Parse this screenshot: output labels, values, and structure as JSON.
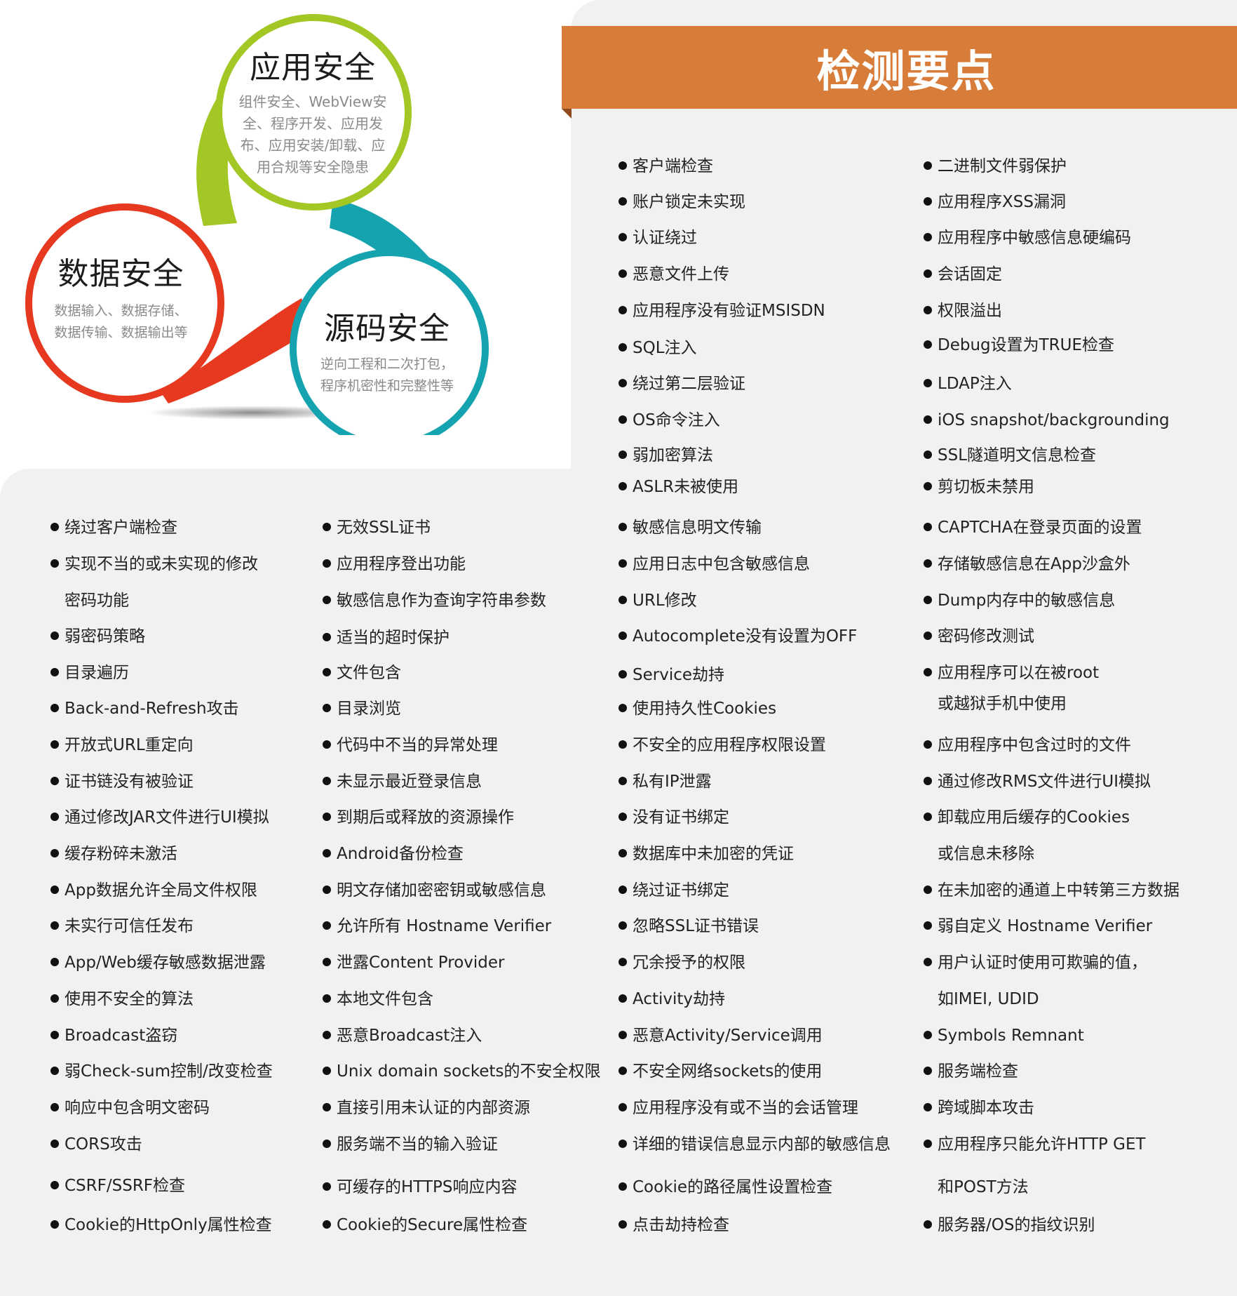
{
  "header": {
    "title": "检测要点"
  },
  "circles": {
    "app": {
      "title": "应用安全",
      "desc_lines": [
        "组件安全、WebView安",
        "全、程序开发、应用发",
        "布、应用安装/卸载、应",
        "用合规等安全隐患"
      ],
      "color": "#a3c725"
    },
    "data": {
      "title": "数据安全",
      "desc_lines": [
        "数据输入、数据存储、",
        "数据传输、数据输出等"
      ],
      "color": "#e6391f"
    },
    "source": {
      "title": "源码安全",
      "desc_lines": [
        "逆向工程和二次打包，",
        "程序机密性和完整性等"
      ],
      "color": "#16a3b0"
    }
  },
  "top_checks": {
    "col_a": [
      "客户端检查",
      "账户锁定未实现",
      "认证绕过",
      "恶意文件上传",
      "应用程序没有验证MSISDN",
      "SQL注入",
      "绕过第二层验证",
      "OS命令注入",
      "弱加密算法",
      "ASLR未被使用"
    ],
    "col_b": [
      "二进制文件弱保护",
      "应用程序XSS漏洞",
      "应用程序中敏感信息硬编码",
      "会话固定",
      "权限溢出",
      "Debug设置为TRUE检查",
      "LDAP注入",
      "iOS snapshot/backgrounding",
      "SSL隧道明文信息检查",
      "剪切板未禁用"
    ]
  },
  "bottom_checks": {
    "col1": [
      "绕过客户端检查",
      "实现不当的或未实现的修改",
      "密码功能",
      "弱密码策略",
      "目录遍历",
      "Back-and-Refresh攻击",
      "开放式URL重定向",
      "证书链没有被验证",
      "通过修改JAR文件进行UI模拟",
      "缓存粉碎未激活",
      "App数据允许全局文件权限",
      "未实行可信任发布",
      "App/Web缓存敏感数据泄露",
      "使用不安全的算法",
      "Broadcast盗窃",
      "弱Check-sum控制/改变检查",
      "响应中包含明文密码",
      "CORS攻击",
      "CSRF/SSRF检查",
      "Cookie的HttpOnly属性检查"
    ],
    "col2": [
      "无效SSL证书",
      "应用程序登出功能",
      "敏感信息作为查询字符串参数",
      "适当的超时保护",
      "文件包含",
      "目录浏览",
      "代码中不当的异常处理",
      "未显示最近登录信息",
      "到期后或释放的资源操作",
      "Android备份检查",
      "明文存储加密密钥或敏感信息",
      "允许所有 Hostname Verifier",
      "泄露Content Provider",
      "本地文件包含",
      "恶意Broadcast注入",
      "Unix domain sockets的不安全权限",
      "直接引用未认证的内部资源",
      "服务端不当的输入验证",
      "可缓存的HTTPS响应内容",
      "Cookie的Secure属性检查"
    ],
    "col3": [
      "敏感信息明文传输",
      "应用日志中包含敏感信息",
      "URL修改",
      "Autocomplete没有设置为OFF",
      "Service劫持",
      "使用持久性Cookies",
      "不安全的应用程序权限设置",
      "私有IP泄露",
      "没有证书绑定",
      "数据库中未加密的凭证",
      "绕过证书绑定",
      "忽略SSL证书错误",
      "冗余授予的权限",
      "Activity劫持",
      "恶意Activity/Service调用",
      "不安全网络sockets的使用",
      "应用程序没有或不当的会话管理",
      "详细的错误信息显示内部的敏感信息",
      "Cookie的路径属性设置检查",
      "点击劫持检查"
    ],
    "col4": [
      "CAPTCHA在登录页面的设置",
      "存储敏感信息在App沙盒外",
      "Dump内存中的敏感信息",
      "密码修改测试",
      "应用程序可以在被root",
      "或越狱手机中使用",
      "应用程序中包含过时的文件",
      "通过修改RMS文件进行UI模拟",
      "卸载应用后缓存的Cookies",
      "或信息未移除",
      "在未加密的通道上中转第三方数据",
      "弱自定义 Hostname Verifier",
      "用户认证时使用可欺骗的值，",
      "如IMEI, UDID",
      "Symbols Remnant",
      "服务端检查",
      "跨域脚本攻击",
      "应用程序只能允许HTTP GET",
      "和POST方法",
      "服务器/OS的指纹识别"
    ]
  }
}
